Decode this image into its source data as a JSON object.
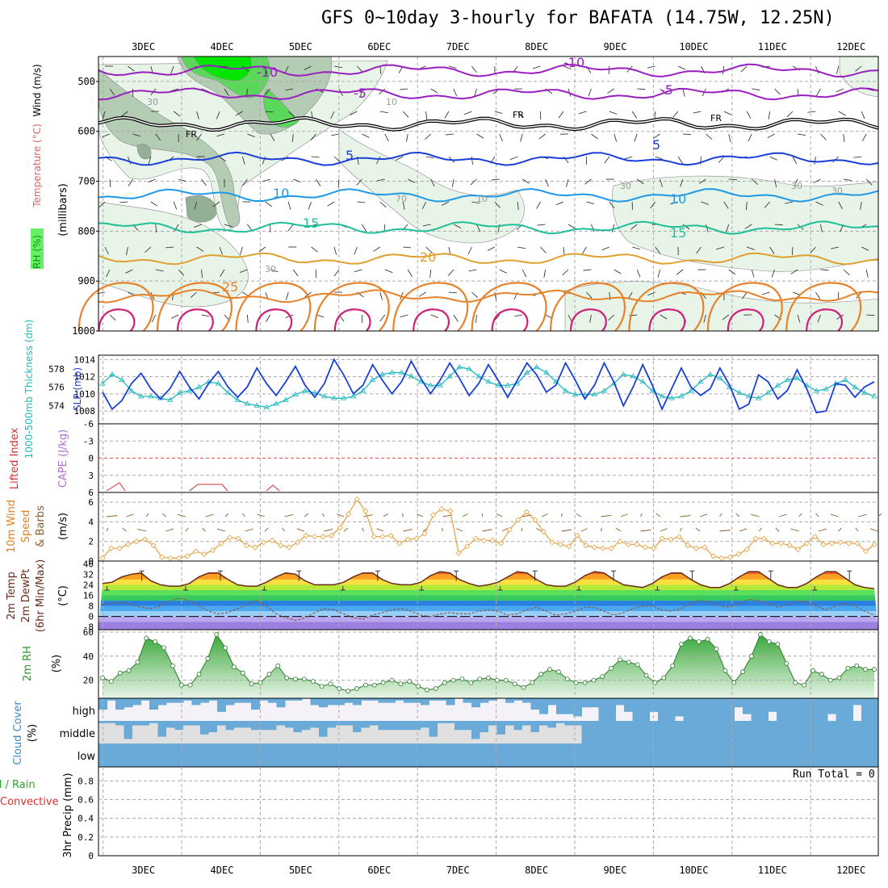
{
  "title": "GFS 0~10day 3-hourly for BAFATA (14.75W, 12.25N)",
  "colors": {
    "rh_light": "#e8f4e8",
    "rh_mid": "#b4ccb4",
    "rh_dark": "#94b094",
    "rh_green": "#5ad85a",
    "rh_bright": "#00e600",
    "purple": "#9a1fc0",
    "black": "#000000",
    "blue": "#1a3fd8",
    "lightblue": "#1f9ae8",
    "teal": "#1ebf9a",
    "gold": "#e0a030",
    "orange": "#e8822a",
    "magenta": "#d0207a",
    "slp": "#1a3fd8",
    "thick": "#20b8c0",
    "wind10": "#e8a040",
    "barb": "#8b5a2b",
    "cloud": "#6aaad8",
    "cloudbg": "#f4f2f8",
    "cloudgray": "#e0e0e0"
  },
  "chart_data": [
    {
      "panel": "upper-air",
      "type": "contour",
      "title": "",
      "ylabel_parts": [
        "RH (%)",
        "Temperature (°C)",
        "Wind (m/s)"
      ],
      "yunits": "(millibars)",
      "y_ticks": [
        "500",
        "600",
        "700",
        "800",
        "900",
        "1000"
      ],
      "x_ticks": [
        "3DEC",
        "4DEC",
        "5DEC",
        "6DEC",
        "7DEC",
        "8DEC",
        "9DEC",
        "10DEC",
        "11DEC",
        "12DEC"
      ],
      "contours": [
        {
          "label": "-10",
          "color": "purple",
          "level": 478
        },
        {
          "label": "-5",
          "color": "purple",
          "level": 525
        },
        {
          "label": "FR",
          "color": "black",
          "level": 585
        },
        {
          "label": "5",
          "color": "blue",
          "level": 655
        },
        {
          "label": "10",
          "color": "lightblue",
          "level": 728
        },
        {
          "label": "15",
          "color": "teal",
          "level": 793
        },
        {
          "label": "20",
          "color": "gold",
          "level": 855
        },
        {
          "label": "25",
          "color": "orange",
          "level": 930
        }
      ],
      "rh_labels": [
        "30",
        "10",
        "30",
        "30",
        "70",
        "10",
        "30",
        "30"
      ]
    },
    {
      "panel": "slp-thickness",
      "type": "line",
      "ylabel_left": "1000-500mb Thickness (dm)",
      "ylabel_right": "SLP (mb)",
      "y_ticks_left": [
        "578",
        "576",
        "574"
      ],
      "y_ticks_right": [
        "1014",
        "1012",
        "1010",
        "1008"
      ],
      "series": [
        {
          "name": "SLP (mb)",
          "color": "slp",
          "values": [
            1010.2,
            1008.2,
            1009.2,
            1011.2,
            1012.4,
            1010.6,
            1009.4,
            1010.6,
            1012.6,
            1010.8,
            1009.4,
            1011.2,
            1012.6,
            1010.8,
            1009.6,
            1010.8,
            1013.0,
            1011.2,
            1009.8,
            1011.4,
            1013.2,
            1011.0,
            1009.6,
            1011.2,
            1014.0,
            1012.2,
            1010.0,
            1011.0,
            1013.4,
            1011.6,
            1010.0,
            1011.4,
            1013.8,
            1011.8,
            1010.0,
            1011.6,
            1013.6,
            1011.8,
            1009.8,
            1011.2,
            1013.4,
            1011.6,
            1009.6,
            1011.6,
            1013.6,
            1012.2,
            1010.2,
            1011.0,
            1013.6,
            1011.6,
            1009.4,
            1011.0,
            1013.6,
            1011.4,
            1008.6,
            1010.8,
            1013.4,
            1011.0,
            1008.2,
            1010.6,
            1013.0,
            1010.8,
            1009.8,
            1010.6,
            1013.0,
            1011.0,
            1008.2,
            1008.8,
            1012.2,
            1011.4,
            1009.4,
            1010.4,
            1012.8,
            1010.6,
            1007.8,
            1008.0,
            1011.2,
            1011.0,
            1009.6,
            1010.8,
            1011.4
          ]
        },
        {
          "name": "1000-500mb Thickness (dm)",
          "color": "thick",
          "values": [
            576.4,
            577.4,
            576.8,
            575.6,
            575.0,
            575.0,
            574.8,
            574.6,
            575.4,
            575.6,
            576.0,
            576.6,
            576.4,
            575.4,
            574.6,
            574.2,
            574.0,
            573.8,
            574.2,
            574.6,
            575.2,
            575.6,
            575.4,
            575.0,
            574.8,
            574.8,
            575.0,
            575.6,
            576.8,
            577.4,
            577.6,
            577.6,
            577.2,
            576.6,
            576.2,
            576.2,
            577.2,
            578.2,
            578.0,
            577.2,
            576.6,
            576.2,
            576.2,
            576.4,
            577.6,
            578.2,
            577.6,
            576.6,
            575.6,
            575.2,
            575.2,
            575.2,
            575.6,
            576.4,
            577.4,
            577.2,
            576.6,
            575.6,
            575.0,
            574.8,
            575.0,
            575.6,
            576.6,
            577.4,
            577.0,
            576.0,
            575.4,
            575.0,
            574.8,
            575.4,
            576.2,
            576.8,
            577.0,
            576.2,
            575.6,
            575.8,
            576.4,
            576.8,
            576.0,
            575.4,
            575.0
          ]
        }
      ]
    },
    {
      "panel": "stability",
      "type": "line",
      "ylabel_left": "Lifted Index",
      "ylabel_right": "CAPE (J/kg)",
      "y_ticks": [
        "-6",
        "-3",
        "0",
        "3",
        "6"
      ],
      "note": "Lifted index near +5 to +6 at times; CAPE near zero."
    },
    {
      "panel": "wind10m",
      "type": "line",
      "ylabel": "10m Wind Speed & Barbs",
      "yunits": "(m/s)",
      "y_ticks": [
        "6",
        "4",
        "2",
        "0"
      ],
      "series": [
        {
          "name": "10m Wind Speed",
          "color": "wind10",
          "values": [
            0.3,
            1.3,
            1.3,
            1.7,
            2.0,
            2.2,
            1.6,
            0.4,
            0.3,
            0.3,
            0.5,
            1.0,
            0.7,
            1.1,
            1.8,
            2.4,
            2.3,
            1.6,
            1.4,
            1.9,
            2.1,
            1.6,
            1.4,
            1.9,
            2.6,
            2.5,
            2.5,
            2.6,
            3.4,
            4.8,
            6.3,
            5.1,
            2.5,
            2.5,
            2.6,
            1.8,
            2.2,
            2.3,
            2.8,
            4.7,
            5.3,
            5.1,
            0.8,
            1.5,
            2.3,
            2.1,
            2.1,
            1.8,
            3.2,
            4.2,
            5.0,
            4.2,
            3.0,
            1.9,
            1.7,
            1.5,
            2.6,
            1.6,
            1.4,
            1.3,
            1.3,
            2.0,
            1.7,
            1.7,
            1.4,
            1.3,
            2.3,
            2.2,
            2.5,
            1.6,
            1.3,
            1.4,
            0.5,
            0.3,
            0.4,
            0.7,
            1.2,
            2.3,
            2.3,
            1.8,
            1.8,
            1.6,
            1.2,
            1.8,
            2.5,
            1.7,
            1.8,
            1.9,
            1.8,
            1.8,
            1.0,
            1.7
          ]
        }
      ]
    },
    {
      "panel": "temp2m",
      "type": "line",
      "ylabel": "2m Temp 2m DewPt (6hr Min/Max)",
      "yunits": "(°C)",
      "y_ticks": [
        "40",
        "32",
        "24",
        "16",
        "8",
        "0",
        "-8"
      ],
      "series": [
        {
          "name": "2m Temp",
          "color": "#6a2b1a",
          "values": [
            25,
            26,
            30,
            32,
            33,
            27,
            24,
            23,
            23,
            25,
            30,
            33,
            33,
            28,
            24,
            23,
            23,
            26,
            30,
            33,
            32,
            27,
            24,
            24,
            24,
            26,
            30,
            33,
            33,
            28,
            25,
            24,
            24,
            26,
            31,
            34,
            33,
            28,
            25,
            23,
            24,
            26,
            30,
            34,
            33,
            28,
            24,
            23,
            23,
            26,
            31,
            34,
            33,
            28,
            24,
            23,
            22,
            25,
            30,
            33,
            33,
            28,
            24,
            22,
            22,
            25,
            30,
            34,
            34,
            29,
            24,
            22,
            22,
            25,
            30,
            34,
            34,
            29,
            24,
            22,
            21
          ]
        },
        {
          "name": "2m DewPt",
          "color": "#9a7a6a",
          "values": [
            9,
            10,
            11,
            9,
            7,
            6,
            8,
            12,
            14,
            12,
            8,
            4,
            2,
            3,
            6,
            9,
            12,
            8,
            2,
            -1,
            -3,
            -1,
            3,
            6,
            5,
            2,
            -1,
            -2,
            1,
            3,
            5,
            6,
            4,
            1,
            0,
            2,
            3,
            2,
            2,
            4,
            5,
            4,
            1,
            2,
            5,
            7,
            4,
            1,
            2,
            4,
            7,
            7,
            4,
            1,
            3,
            6,
            8,
            8,
            5,
            4,
            6,
            10,
            12,
            11,
            8,
            7,
            10,
            13,
            12,
            10,
            7,
            9,
            12,
            11,
            8,
            5,
            8,
            10,
            8,
            4,
            1
          ]
        }
      ]
    },
    {
      "panel": "rh2m",
      "type": "area",
      "ylabel": "2m RH",
      "yunits": "(%)",
      "y_ticks": [
        "60",
        "40",
        "20"
      ],
      "series": [
        {
          "name": "2m RH",
          "values": [
            22,
            19,
            26,
            28,
            35,
            55,
            52,
            47,
            32,
            16,
            16,
            25,
            38,
            58,
            47,
            31,
            26,
            17,
            18,
            25,
            32,
            22,
            21,
            21,
            19,
            15,
            17,
            13,
            11,
            13,
            16,
            16,
            18,
            20,
            17,
            19,
            15,
            12,
            13,
            18,
            20,
            21,
            18,
            21,
            22,
            20,
            20,
            17,
            14,
            18,
            25,
            29,
            27,
            21,
            18,
            18,
            20,
            23,
            30,
            37,
            35,
            33,
            24,
            18,
            22,
            32,
            50,
            55,
            52,
            54,
            46,
            28,
            18,
            27,
            40,
            58,
            52,
            50,
            34,
            18,
            16,
            28,
            25,
            20,
            22,
            30,
            32,
            29,
            29
          ]
        }
      ]
    },
    {
      "panel": "cloud",
      "type": "heatmap",
      "ylabel": "Cloud Cover",
      "yunits": "(%)",
      "layers": [
        "high",
        "middle",
        "low"
      ],
      "high": [
        50,
        10,
        50,
        40,
        30,
        10,
        50,
        30,
        20,
        20,
        10,
        30,
        20,
        10,
        60,
        30,
        20,
        20,
        50,
        10,
        20,
        40,
        10,
        10,
        0,
        30,
        40,
        30,
        30,
        20,
        30,
        10,
        10,
        20,
        20,
        10,
        20,
        20,
        30,
        10,
        10,
        30,
        0,
        20,
        40,
        20,
        10,
        0,
        20,
        10,
        20,
        50,
        70,
        30,
        70,
        70,
        80,
        40,
        40,
        100,
        100,
        30,
        60,
        100,
        100,
        60,
        100,
        100,
        80,
        100,
        100,
        100,
        100,
        100,
        100,
        40,
        70,
        100,
        100,
        60,
        100,
        100,
        100,
        100,
        100,
        100,
        70,
        100,
        100,
        30,
        100,
        100
      ],
      "middle": [
        10,
        10,
        20,
        80,
        20,
        20,
        10,
        70,
        30,
        40,
        20,
        20,
        60,
        50,
        20,
        40,
        30,
        30,
        40,
        40,
        40,
        20,
        30,
        50,
        40,
        30,
        70,
        30,
        20,
        20,
        50,
        30,
        20,
        40,
        40,
        40,
        40,
        40,
        30,
        70,
        10,
        10,
        40,
        40,
        80,
        50,
        20,
        60,
        20,
        40,
        20,
        50,
        20,
        30,
        10,
        20,
        20,
        100,
        100,
        100,
        100,
        100,
        100,
        100,
        100,
        100,
        100,
        100,
        100,
        100,
        100,
        100,
        100,
        100,
        100,
        100,
        100,
        100,
        100,
        100,
        100,
        100,
        100,
        100,
        100,
        100,
        100,
        100,
        100,
        100,
        100,
        100
      ],
      "low": [
        100
      ]
    },
    {
      "panel": "precip",
      "type": "bar",
      "ylabel_left": "Total / Rain Convective",
      "ylabel": "3hr Precip (mm)",
      "y_ticks": [
        "0.8",
        "0.6",
        "0.4",
        "0.2",
        "0"
      ],
      "run_total_label": "Run Total = 0",
      "values": []
    }
  ]
}
